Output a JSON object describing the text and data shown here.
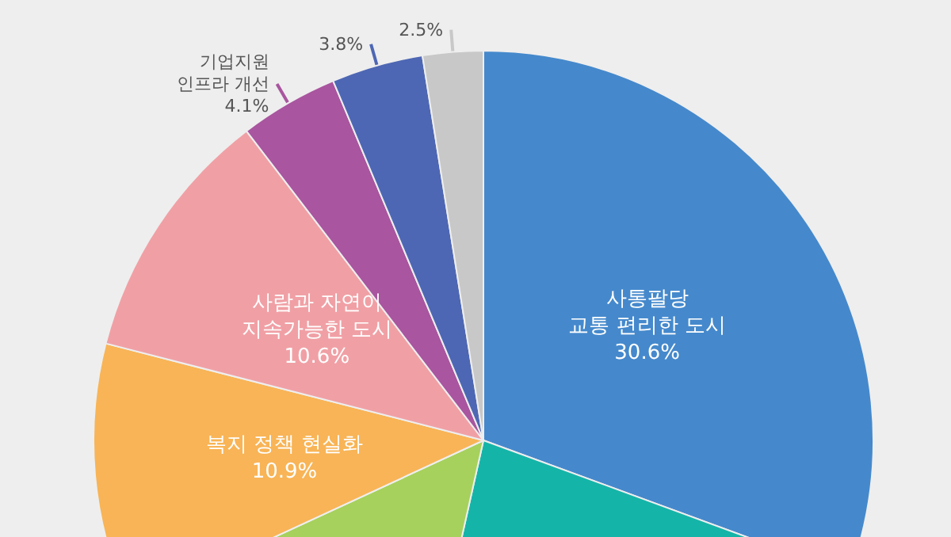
{
  "chart_data": {
    "type": "pie",
    "categories": [
      "사통팔당\n교통 편리한 도시",
      null,
      null,
      "복지 정책 현실화",
      "사람과 자연이\n지속가능한 도시",
      "기업지원\n인프라 개선",
      null,
      null
    ],
    "values": [
      30.6,
      22.9,
      14.6,
      10.9,
      10.6,
      4.1,
      3.8,
      2.5
    ],
    "value_labels": [
      "30.6%",
      null,
      null,
      "10.9%",
      "10.6%",
      "4.1%",
      "3.8%",
      "2.5%"
    ],
    "colors": [
      "#4589cc",
      "#14b5a8",
      "#a6d15c",
      "#f8b456",
      "#f0a0a5",
      "#a9559f",
      "#4e67b4",
      "#c8c8c8"
    ],
    "legend": false
  }
}
